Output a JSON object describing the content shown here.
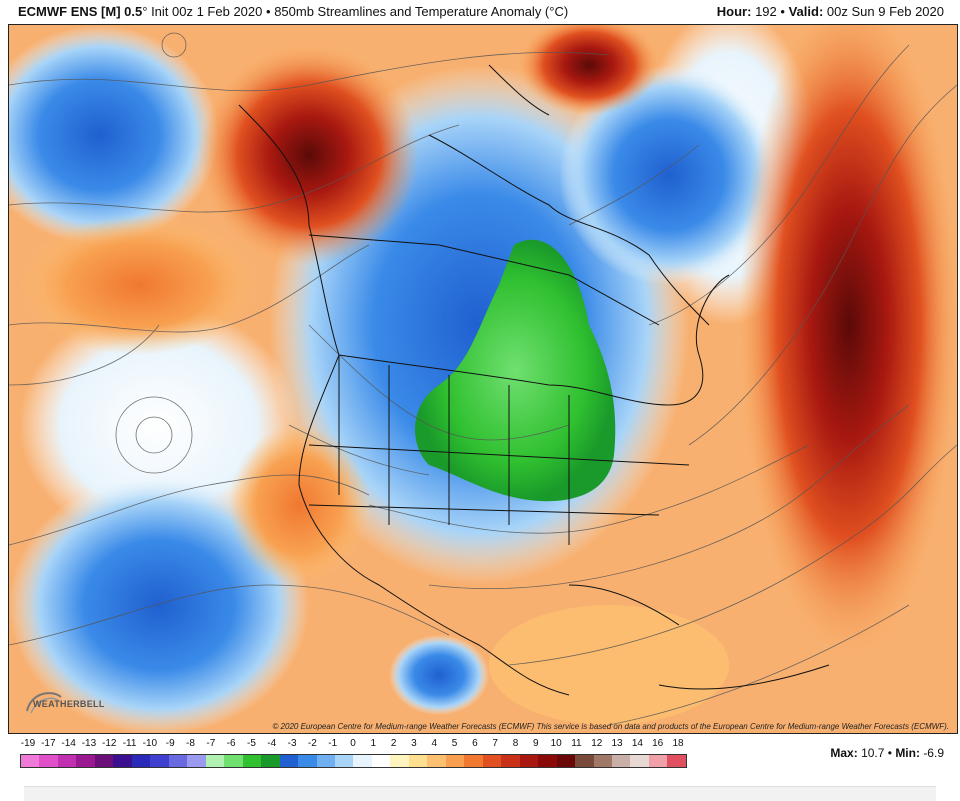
{
  "header": {
    "model": "ECMWF ENS [M] 0.5",
    "degree": "°",
    "init": "Init 00z 1 Feb 2020",
    "bullet": "•",
    "product": "850mb Streamlines and Temperature Anomaly (°C)",
    "hour_label": "Hour:",
    "hour_value": "192",
    "valid_label": "Valid:",
    "valid_value": "00z Sun 9 Feb 2020"
  },
  "map": {
    "copyright": "© 2020 European Centre for Medium-range Weather Forecasts (ECMWF)  This service is based on data and products of the European Centre for Medium-range Weather Forecasts (ECMWF).",
    "logo_text": "WEATHERBELL"
  },
  "legend": {
    "labels": [
      "-19",
      "-17",
      "-14",
      "-13",
      "-12",
      "-11",
      "-10",
      "-9",
      "-8",
      "-7",
      "-6",
      "-5",
      "-4",
      "-3",
      "-2",
      "-1",
      "0",
      "1",
      "2",
      "3",
      "4",
      "5",
      "6",
      "7",
      "8",
      "9",
      "10",
      "11",
      "12",
      "13",
      "14",
      "16",
      "18"
    ],
    "colors": [
      "#f07ad8",
      "#e050c8",
      "#c030b0",
      "#9a1890",
      "#6a0f78",
      "#3a1090",
      "#2a2ab8",
      "#4040d0",
      "#6a6ae0",
      "#9a9af0",
      "#b0f0b0",
      "#70e070",
      "#30c030",
      "#1a9a2a",
      "#2060d0",
      "#3a8ae8",
      "#70b0f0",
      "#a8d4f8",
      "#e8f4fc",
      "#ffffff",
      "#fff4c0",
      "#ffe090",
      "#fcc070",
      "#f8a050",
      "#f07830",
      "#e05020",
      "#c83018",
      "#a81810",
      "#8a0a08",
      "#6a0808",
      "#7a4a3a",
      "#a07868",
      "#c8b0a8",
      "#e8d8d4",
      "#f0a0a8",
      "#e05060"
    ]
  },
  "stats": {
    "max_label": "Max:",
    "max_value": "10.7",
    "separator": "•",
    "min_label": "Min:",
    "min_value": "-6.9"
  }
}
